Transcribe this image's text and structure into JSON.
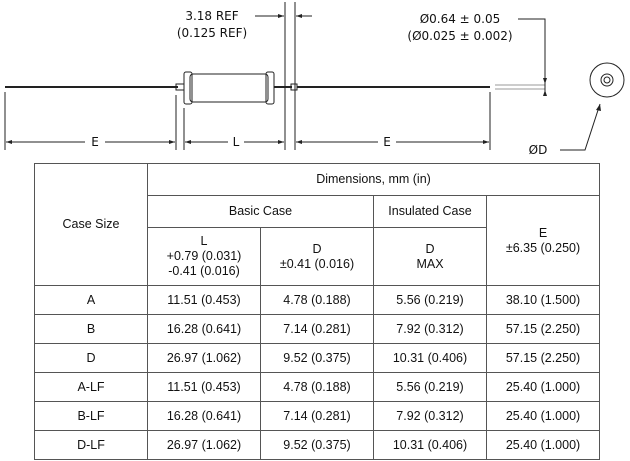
{
  "drawing": {
    "ref_dim": "3.18 REF",
    "ref_dim_in": "(0.125 REF)",
    "lead_dia": "Ø0.64 ± 0.05",
    "lead_dia_in": "(Ø0.025 ± 0.002)",
    "label_e": "E",
    "label_l": "L",
    "label_d": "ØD"
  },
  "table": {
    "case_size": "Case Size",
    "dimensions": "Dimensions, mm (in)",
    "basic_case": "Basic Case",
    "insulated_case": "Insulated Case",
    "l_h": [
      "L",
      "+0.79 (0.031)",
      "-0.41 (0.016)"
    ],
    "d_h": [
      "D",
      "±0.41 (0.016)"
    ],
    "dmax_h": [
      "D",
      "MAX"
    ],
    "e_h": [
      "E",
      "±6.35 (0.250)"
    ],
    "rows": [
      [
        "A",
        "11.51 (0.453)",
        "4.78 (0.188)",
        "5.56 (0.219)",
        "38.10 (1.500)"
      ],
      [
        "B",
        "16.28 (0.641)",
        "7.14 (0.281)",
        "7.92 (0.312)",
        "57.15 (2.250)"
      ],
      [
        "D",
        "26.97 (1.062)",
        "9.52 (0.375)",
        "10.31 (0.406)",
        "57.15 (2.250)"
      ],
      [
        "A-LF",
        "11.51 (0.453)",
        "4.78 (0.188)",
        "5.56 (0.219)",
        "25.40 (1.000)"
      ],
      [
        "B-LF",
        "16.28 (0.641)",
        "7.14 (0.281)",
        "7.92 (0.312)",
        "25.40 (1.000)"
      ],
      [
        "D-LF",
        "26.97 (1.062)",
        "9.52 (0.375)",
        "10.31 (0.406)",
        "25.40 (1.000)"
      ]
    ]
  }
}
